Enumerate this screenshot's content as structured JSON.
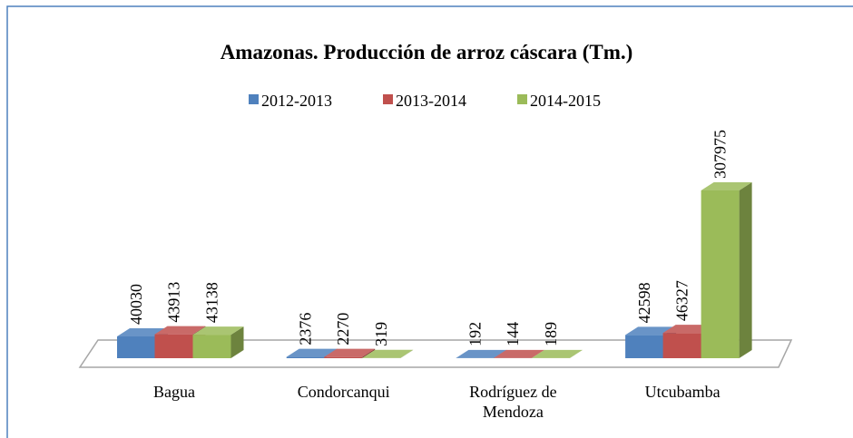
{
  "chart_data": {
    "type": "bar3d",
    "title": "Amazonas. Producción de arroz cáscara (Tm.)",
    "categories": [
      "Bagua",
      "Condorcanqui",
      "Rodríguez de Mendoza",
      "Utcubamba"
    ],
    "series": [
      {
        "name": "2012-2013",
        "color": "#4f81bd",
        "values": [
          40030,
          2376,
          192,
          42598
        ]
      },
      {
        "name": "2013-2014",
        "color": "#c0504d",
        "values": [
          43913,
          2270,
          144,
          46327
        ]
      },
      {
        "name": "2014-2015",
        "color": "#9bbb59",
        "values": [
          43138,
          319,
          189,
          307975
        ]
      }
    ],
    "legend": "top"
  }
}
